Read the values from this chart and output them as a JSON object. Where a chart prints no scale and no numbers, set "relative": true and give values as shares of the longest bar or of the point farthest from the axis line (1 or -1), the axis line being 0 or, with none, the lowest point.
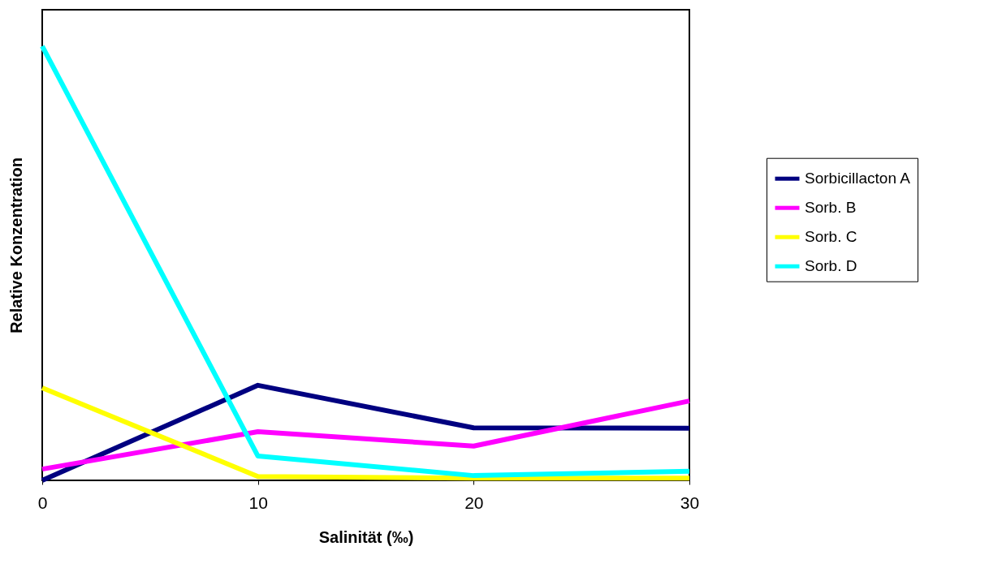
{
  "chart_data": {
    "type": "line",
    "relative": true,
    "xlabel": "Salinität (‰)",
    "ylabel": "Relative Konzentration",
    "x": [
      0,
      10,
      20,
      30
    ],
    "xlim": [
      0,
      30
    ],
    "xticks": [
      0,
      10,
      20,
      30
    ],
    "grid": false,
    "legend": "right",
    "marker": "none",
    "line_style": "solid",
    "series": [
      {
        "name": "Sorbicillacton A",
        "color": "#000080",
        "values": [
          0,
          0.219,
          0.121,
          0.12
        ]
      },
      {
        "name": "Sorb. B",
        "color": "#ff00ff",
        "values": [
          0.026,
          0.112,
          0.079,
          0.183
        ]
      },
      {
        "name": "Sorb. C",
        "color": "#ffff00",
        "values": [
          0.213,
          0.009,
          0.005,
          0.005
        ]
      },
      {
        "name": "Sorb. D",
        "color": "#00ffff",
        "values": [
          1,
          0.056,
          0.011,
          0.021
        ]
      }
    ]
  }
}
